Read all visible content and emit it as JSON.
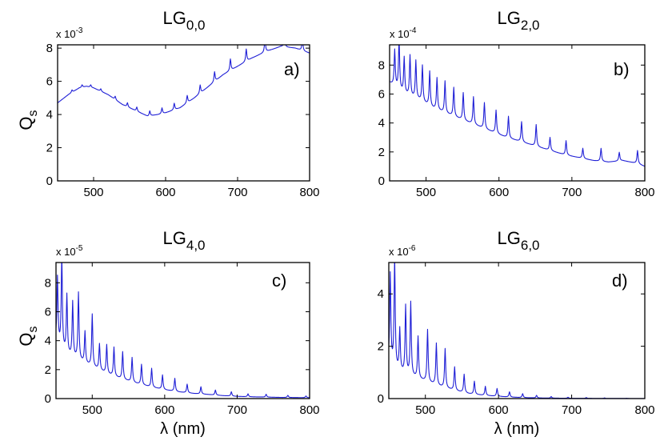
{
  "chart_data": [
    {
      "type": "line",
      "panel": "a)",
      "title_base": "LG",
      "title_sub": "0,0",
      "multiplier_base": "x 10",
      "multiplier_exp": "-3",
      "ylabel_base": "Q",
      "ylabel_sub": "s",
      "xlabel": "",
      "xlim": [
        450,
        800
      ],
      "ylim": [
        0,
        8.2
      ],
      "xticks": [
        "500",
        "600",
        "700",
        "800"
      ],
      "yticks": [
        "0",
        "2",
        "4",
        "6",
        "8"
      ],
      "series": [
        {
          "name": "Qs",
          "points": [
            [
              450,
              4.7
            ],
            [
              465,
              5.2
            ],
            [
              480,
              5.6
            ],
            [
              490,
              5.7
            ],
            [
              500,
              5.6
            ],
            [
              520,
              5.2
            ],
            [
              540,
              4.6
            ],
            [
              560,
              4.2
            ],
            [
              575,
              3.9
            ],
            [
              590,
              4.0
            ],
            [
              600,
              4.1
            ],
            [
              620,
              4.4
            ],
            [
              640,
              5.0
            ],
            [
              660,
              5.7
            ],
            [
              680,
              6.4
            ],
            [
              700,
              6.9
            ],
            [
              720,
              7.4
            ],
            [
              740,
              7.8
            ],
            [
              760,
              8.1
            ],
            [
              780,
              8.0
            ],
            [
              800,
              7.7
            ]
          ],
          "peaks": [
            [
              470,
              0.15
            ],
            [
              484,
              0.15
            ],
            [
              496,
              0.15
            ],
            [
              510,
              0.15
            ],
            [
              530,
              0.2
            ],
            [
              547,
              0.25
            ],
            [
              560,
              0.25
            ],
            [
              578,
              0.3
            ],
            [
              595,
              0.35
            ],
            [
              612,
              0.4
            ],
            [
              630,
              0.45
            ],
            [
              648,
              0.5
            ],
            [
              668,
              0.6
            ],
            [
              690,
              0.7
            ],
            [
              712,
              0.75
            ],
            [
              738,
              0.8
            ],
            [
              765,
              0.7
            ],
            [
              790,
              0.7
            ]
          ]
        }
      ]
    },
    {
      "type": "line",
      "panel": "b)",
      "title_base": "LG",
      "title_sub": "2,0",
      "multiplier_base": "x 10",
      "multiplier_exp": "-4",
      "ylabel_base": "",
      "ylabel_sub": "",
      "xlabel": "",
      "xlim": [
        450,
        800
      ],
      "ylim": [
        0,
        9.4
      ],
      "xticks": [
        "500",
        "600",
        "700",
        "800"
      ],
      "yticks": [
        "0",
        "2",
        "4",
        "6",
        "8"
      ],
      "series": [
        {
          "name": "Qs",
          "points": [
            [
              450,
              6.8
            ],
            [
              460,
              6.4
            ],
            [
              470,
              6.0
            ],
            [
              490,
              5.6
            ],
            [
              510,
              5.0
            ],
            [
              530,
              4.6
            ],
            [
              550,
              4.2
            ],
            [
              570,
              3.8
            ],
            [
              590,
              3.4
            ],
            [
              610,
              3.0
            ],
            [
              630,
              2.7
            ],
            [
              650,
              2.4
            ],
            [
              670,
              2.1
            ],
            [
              690,
              1.8
            ],
            [
              710,
              1.6
            ],
            [
              730,
              1.4
            ],
            [
              750,
              1.3
            ],
            [
              770,
              1.4
            ],
            [
              790,
              1.2
            ],
            [
              800,
              1.0
            ]
          ],
          "peaks": [
            [
              457,
              2.5
            ],
            [
              463,
              3.5
            ],
            [
              470,
              2.5
            ],
            [
              478,
              2.8
            ],
            [
              486,
              2.6
            ],
            [
              495,
              2.5
            ],
            [
              505,
              2.4
            ],
            [
              515,
              2.2
            ],
            [
              526,
              2.2
            ],
            [
              538,
              2.0
            ],
            [
              551,
              1.9
            ],
            [
              565,
              1.9
            ],
            [
              580,
              1.8
            ],
            [
              596,
              1.6
            ],
            [
              613,
              1.5
            ],
            [
              631,
              1.4
            ],
            [
              651,
              1.5
            ],
            [
              670,
              0.9
            ],
            [
              692,
              1.0
            ],
            [
              715,
              0.7
            ],
            [
              740,
              0.9
            ],
            [
              765,
              0.6
            ],
            [
              790,
              0.9
            ]
          ]
        }
      ]
    },
    {
      "type": "line",
      "panel": "c)",
      "title_base": "LG",
      "title_sub": "4,0",
      "multiplier_base": "x 10",
      "multiplier_exp": "-5",
      "ylabel_base": "Q",
      "ylabel_sub": "s",
      "xlabel": "λ (nm)",
      "xlim": [
        450,
        800
      ],
      "ylim": [
        0,
        9.4
      ],
      "xticks": [
        "500",
        "600",
        "700",
        "800"
      ],
      "yticks": [
        "0",
        "2",
        "4",
        "6",
        "8"
      ],
      "series": [
        {
          "name": "Qs",
          "points": [
            [
              450,
              4.0
            ],
            [
              460,
              3.3
            ],
            [
              470,
              2.9
            ],
            [
              480,
              2.7
            ],
            [
              490,
              2.4
            ],
            [
              500,
              2.2
            ],
            [
              520,
              1.7
            ],
            [
              540,
              1.35
            ],
            [
              560,
              1.05
            ],
            [
              580,
              0.8
            ],
            [
              600,
              0.6
            ],
            [
              620,
              0.45
            ],
            [
              640,
              0.35
            ],
            [
              660,
              0.28
            ],
            [
              680,
              0.2
            ],
            [
              700,
              0.15
            ],
            [
              720,
              0.12
            ],
            [
              740,
              0.1
            ],
            [
              760,
              0.08
            ],
            [
              780,
              0.07
            ],
            [
              800,
              0.06
            ]
          ],
          "peaks": [
            [
              452,
              4.5
            ],
            [
              458,
              6.4
            ],
            [
              465,
              4.0
            ],
            [
              473,
              3.8
            ],
            [
              481,
              4.6
            ],
            [
              490,
              2.2
            ],
            [
              500,
              3.6
            ],
            [
              510,
              1.8
            ],
            [
              520,
              2.0
            ],
            [
              530,
              2.0
            ],
            [
              542,
              1.9
            ],
            [
              555,
              1.7
            ],
            [
              568,
              1.4
            ],
            [
              582,
              1.3
            ],
            [
              597,
              1.0
            ],
            [
              614,
              0.9
            ],
            [
              631,
              0.6
            ],
            [
              650,
              0.5
            ],
            [
              670,
              0.35
            ],
            [
              692,
              0.3
            ],
            [
              715,
              0.2
            ],
            [
              740,
              0.2
            ],
            [
              770,
              0.15
            ],
            [
              795,
              0.12
            ]
          ]
        }
      ]
    },
    {
      "type": "line",
      "panel": "d)",
      "title_base": "LG",
      "title_sub": "6,0",
      "multiplier_base": "x 10",
      "multiplier_exp": "-6",
      "ylabel_base": "",
      "ylabel_sub": "",
      "xlabel": "λ (nm)",
      "xlim": [
        450,
        800
      ],
      "ylim": [
        0,
        5.2
      ],
      "xticks": [
        "500",
        "600",
        "700",
        "800"
      ],
      "yticks": [
        "0",
        "2",
        "4"
      ],
      "series": [
        {
          "name": "Qs",
          "points": [
            [
              450,
              1.4
            ],
            [
              460,
              1.1
            ],
            [
              470,
              0.95
            ],
            [
              480,
              0.85
            ],
            [
              490,
              0.75
            ],
            [
              500,
              0.65
            ],
            [
              520,
              0.45
            ],
            [
              540,
              0.3
            ],
            [
              560,
              0.18
            ],
            [
              580,
              0.12
            ],
            [
              600,
              0.08
            ],
            [
              620,
              0.05
            ],
            [
              640,
              0.03
            ],
            [
              660,
              0.02
            ],
            [
              680,
              0.015
            ],
            [
              700,
              0.01
            ],
            [
              750,
              0.005
            ],
            [
              800,
              0.002
            ]
          ],
          "peaks": [
            [
              452,
              3.4
            ],
            [
              458,
              4.2
            ],
            [
              465,
              1.6
            ],
            [
              473,
              2.6
            ],
            [
              480,
              2.8
            ],
            [
              490,
              1.6
            ],
            [
              503,
              2.0
            ],
            [
              515,
              1.6
            ],
            [
              527,
              1.5
            ],
            [
              540,
              0.9
            ],
            [
              553,
              0.7
            ],
            [
              567,
              0.5
            ],
            [
              582,
              0.35
            ],
            [
              598,
              0.3
            ],
            [
              615,
              0.2
            ],
            [
              633,
              0.15
            ],
            [
              652,
              0.1
            ],
            [
              672,
              0.06
            ],
            [
              695,
              0.04
            ],
            [
              720,
              0.03
            ],
            [
              745,
              0.02
            ],
            [
              775,
              0.01
            ]
          ]
        }
      ]
    }
  ]
}
